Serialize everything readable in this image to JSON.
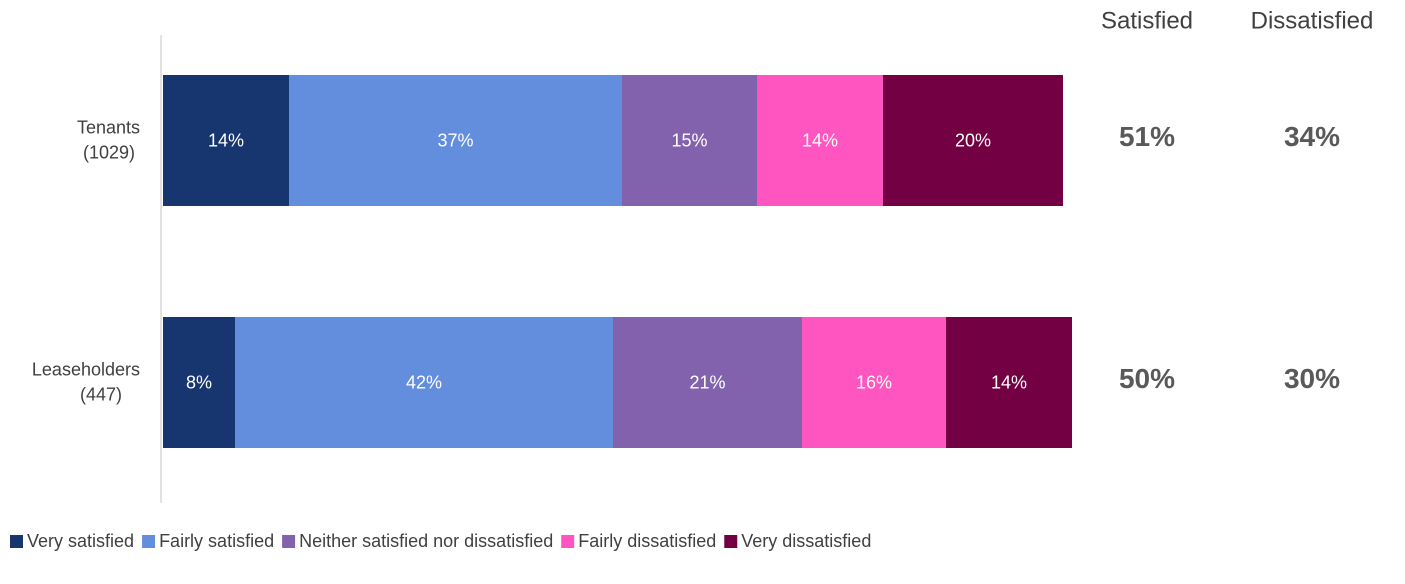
{
  "chart_data": {
    "type": "stacked-bar-horizontal",
    "categories": [
      "Tenants",
      "Leaseholders"
    ],
    "category_counts": [
      "(1029)",
      "(447)"
    ],
    "xlim": [
      0,
      101
    ],
    "legend": "bottom",
    "series": [
      {
        "name": "Very satisfied",
        "color": "#17366f",
        "values": [
          14,
          8
        ],
        "value_labels": [
          "14%",
          "8%"
        ]
      },
      {
        "name": "Fairly satisfied",
        "color": "#638ede",
        "values": [
          37,
          42
        ],
        "value_labels": [
          "37%",
          "42%"
        ]
      },
      {
        "name": "Neither satisfied nor dissatisfied",
        "color": "#8362ad",
        "values": [
          15,
          21
        ],
        "value_labels": [
          "15%",
          "21%"
        ]
      },
      {
        "name": "Fairly dissatisfied",
        "color": "#ff55c0",
        "values": [
          14,
          16
        ],
        "value_labels": [
          "14%",
          "16%"
        ]
      },
      {
        "name": "Very dissatisfied",
        "color": "#730043",
        "values": [
          20,
          14
        ],
        "value_labels": [
          "20%",
          "14%"
        ]
      }
    ],
    "summary": {
      "columns": [
        "Satisfied",
        "Dissatisfied"
      ],
      "values": [
        [
          51,
          34
        ],
        [
          50,
          30
        ]
      ],
      "value_labels": [
        [
          "51%",
          "34%"
        ],
        [
          "50%",
          "30%"
        ]
      ]
    }
  }
}
